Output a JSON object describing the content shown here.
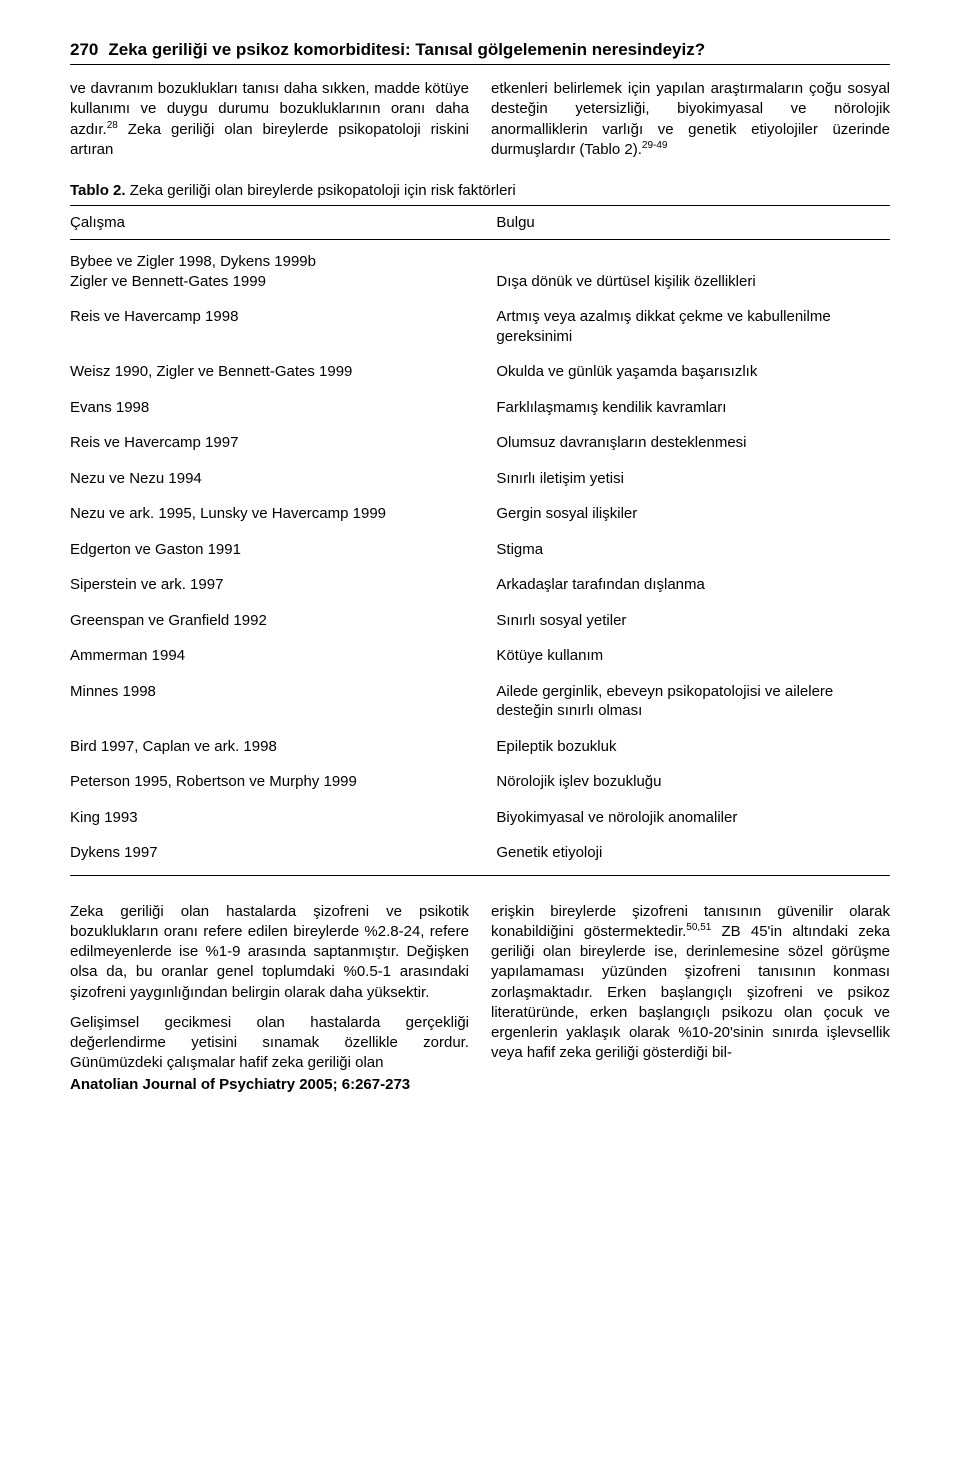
{
  "header": {
    "page_number": "270",
    "title": "Zeka geriliği ve psikoz komorbiditesi: Tanısal gölgelemenin neresindeyiz?"
  },
  "top_paragraphs": {
    "left": "ve davranım bozuklukları tanısı daha sıkken, madde kötüye kullanımı ve duygu durumu bozukluklarının oranı daha azdır.28 Zeka geriliği olan bireylerde psikopatoloji riskini artıran",
    "left_sup_after": "28",
    "right": "etkenleri belirlemek için yapılan araştırmaların çoğu sosyal desteğin yetersizliği, biyokimyasal ve nörolojik anormalliklerin varlığı ve genetik etiyolojiler üzerinde durmuşlardır (Tablo 2).29-49",
    "right_sup_after": "29-49"
  },
  "table2": {
    "label": "Tablo 2.",
    "caption": "Zeka geriliği olan bireylerde psikopatoloji için risk faktörleri",
    "col1": "Çalışma",
    "col2": "Bulgu",
    "rows": [
      {
        "c1": "Bybee ve Zigler 1998, Dykens 1999b\nZigler ve Bennett-Gates 1999",
        "c2": "Dışa dönük ve dürtüsel kişilik özellikleri"
      },
      {
        "c1": "Reis ve Havercamp 1998",
        "c2": "Artmış veya azalmış dikkat çekme ve kabullenilme gereksinimi"
      },
      {
        "c1": "Weisz 1990, Zigler ve Bennett-Gates 1999",
        "c2": "Okulda ve günlük yaşamda başarısızlık"
      },
      {
        "c1": "Evans 1998",
        "c2": "Farklılaşmamış kendilik kavramları"
      },
      {
        "c1": "Reis ve Havercamp 1997",
        "c2": "Olumsuz davranışların desteklenmesi"
      },
      {
        "c1": "Nezu ve Nezu 1994",
        "c2": "Sınırlı iletişim yetisi"
      },
      {
        "c1": "Nezu ve ark. 1995, Lunsky ve Havercamp 1999",
        "c2": "Gergin sosyal ilişkiler"
      },
      {
        "c1": "Edgerton ve Gaston 1991",
        "c2": "Stigma"
      },
      {
        "c1": "Siperstein ve ark. 1997",
        "c2": "Arkadaşlar tarafından dışlanma"
      },
      {
        "c1": "Greenspan ve Granfield 1992",
        "c2": "Sınırlı sosyal yetiler"
      },
      {
        "c1": "Ammerman 1994",
        "c2": "Kötüye kullanım"
      },
      {
        "c1": "Minnes 1998",
        "c2": "Ailede gerginlik, ebeveyn psikopatolojisi ve ailelere desteğin sınırlı olması"
      },
      {
        "c1": "Bird 1997, Caplan ve ark. 1998",
        "c2": "Epileptik bozukluk"
      },
      {
        "c1": "Peterson 1995, Robertson ve Murphy 1999",
        "c2": "Nörolojik işlev bozukluğu"
      },
      {
        "c1": "King 1993",
        "c2": "Biyokimyasal ve nörolojik anomaliler"
      },
      {
        "c1": "Dykens 1997",
        "c2": "Genetik etiyoloji"
      }
    ]
  },
  "bottom_paragraphs": {
    "left_p1": "Zeka geriliği olan hastalarda şizofreni ve psikotik bozuklukların oranı refere edilen bireylerde %2.8-24, refere edilmeyenlerde ise %1-9 arasında saptanmıştır. Değişken olsa da, bu oranlar genel toplumdaki %0.5-1 arasındaki şizofreni yaygınlığından belirgin olarak daha yüksektir.",
    "left_p2": "Gelişimsel gecikmesi olan hastalarda gerçekliği değerlendirme yetisini sınamak özellikle zordur. Günümüzdeki çalışmalar hafif zeka geriliği olan",
    "right_p1": "erişkin bireylerde şizofreni tanısının güvenilir olarak konabildiğini göstermektedir.50,51 ZB 45'in altındaki zeka geriliği olan bireylerde ise, derinlemesine sözel görüşme yapılamaması yüzünden şizofreni tanısının konması zorlaşmaktadır. Erken başlangıçlı şizofreni ve psikoz literatüründe, erken başlangıçlı psikozu olan çocuk ve ergenlerin yaklaşık olarak %10-20'sinin sınırda işlevsellik veya hafif zeka geriliği gösterdiği bil-"
  },
  "journal": "Anatolian Journal of Psychiatry 2005; 6:267-273"
}
